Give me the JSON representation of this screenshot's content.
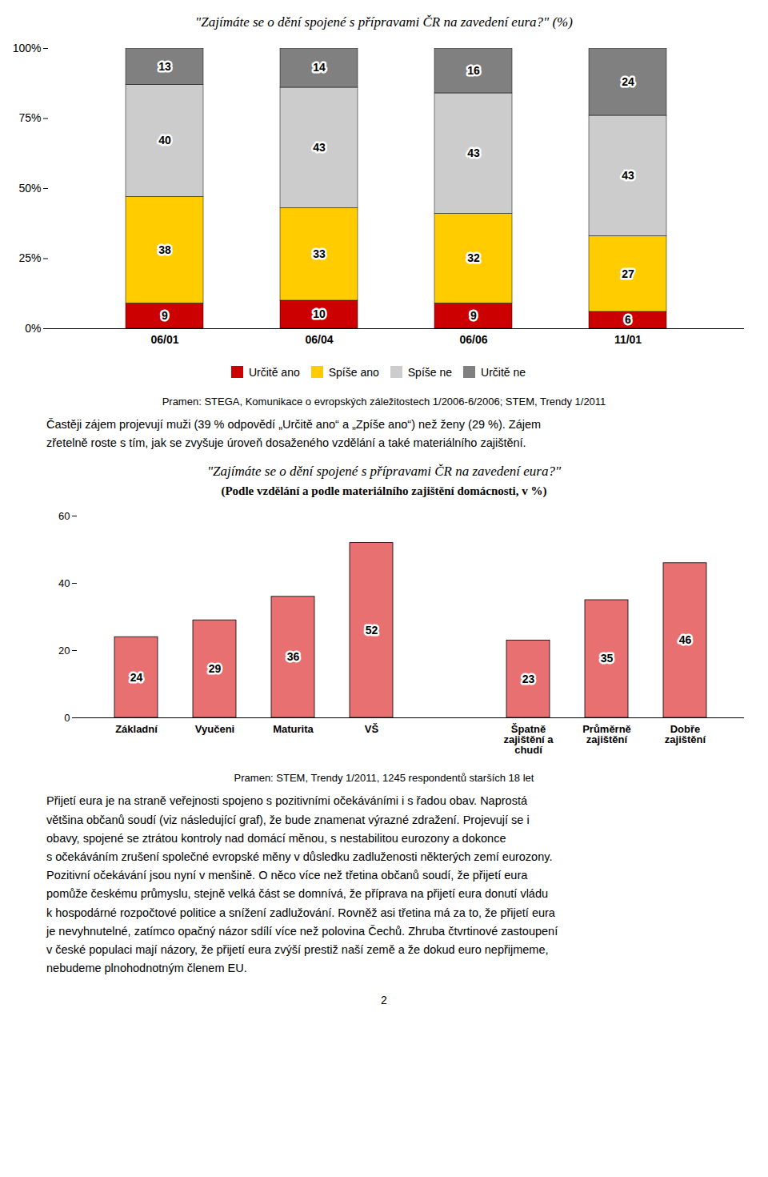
{
  "chart_data": [
    {
      "type": "bar",
      "title": "\"Zajímáte se o dění spojené s přípravami ČR na zavedení eura?\"  (%)",
      "categories": [
        "06/01",
        "06/04",
        "06/06",
        "11/01"
      ],
      "series": [
        {
          "name": "Určitě ano",
          "color": "#cc0000",
          "values": [
            9,
            10,
            9,
            6
          ]
        },
        {
          "name": "Spíše ano",
          "color": "#ffcc00",
          "values": [
            38,
            33,
            32,
            27
          ]
        },
        {
          "name": "Spíše ne",
          "color": "#cccccc",
          "values": [
            40,
            43,
            43,
            43
          ]
        },
        {
          "name": "Určitě ne",
          "color": "#808080",
          "values": [
            13,
            14,
            16,
            24
          ]
        }
      ],
      "stacked": true,
      "data_labels": true,
      "legend": "bottom",
      "grid": false,
      "ylim": [
        0,
        100
      ],
      "yticks": [
        {
          "value": 0,
          "label": "0%"
        },
        {
          "value": 25,
          "label": "25%"
        },
        {
          "value": 50,
          "label": "50%"
        },
        {
          "value": 75,
          "label": "75%"
        },
        {
          "value": 100,
          "label": "100%"
        }
      ],
      "caption": "Pramen: STEGA, Komunikace o evropských záležitostech 1/2006-6/2006; STEM, Trendy 1/2011",
      "annotations": [
        "Častěji zájem projevují muži (39 % odpovědí „Určitě ano“ a „Zpíše ano“) než ženy (29 %). Zájem",
        "zřetelně  roste s tím, jak se zvyšuje úroveň dosaženého vzdělání a také materiálního zajištění."
      ]
    },
    {
      "type": "bar",
      "title": "\"Zajímáte se o dění spojené s přípravami ČR na zavedení eura?\"",
      "subtitle": "(Podle vzdělání a podle materiálního zajištění domácnosti, v %)",
      "categories": [
        "Základní",
        "Vyučeni",
        "Maturita",
        "VŠ",
        null,
        "Špatně\nzajištění a\nchudí",
        "Průměrně\nzajištění",
        "Dobře\nzajištění"
      ],
      "values": [
        24,
        29,
        36,
        52,
        null,
        23,
        35,
        46
      ],
      "color": "#e87070",
      "data_labels": true,
      "grid": false,
      "ylim": [
        0,
        60
      ],
      "yticks": [
        0,
        20,
        40,
        60
      ],
      "caption": "Pramen: STEM, Trendy 1/2011, 1245 respondentů starších 18 let",
      "annotations": [
        "Přijetí eura je na straně veřejnosti spojeno s pozitivními očekáváními i s řadou obav. Naprostá",
        "většina občanů soudí (viz následující graf), že bude znamenat výrazné zdražení. Projevují se i",
        "obavy, spojené se ztrátou kontroly nad domácí měnou, s nestabilitou eurozony a dokonce",
        "s očekáváním zrušení společné evropské měny v důsledku zadluženosti některých zemí eurozony.",
        "Pozitivní očekávání jsou nyní v menšině. O něco více než třetina občanů soudí, že přijetí eura",
        "pomůže českému průmyslu, stejně velká část se domnívá, že příprava na přijetí eura donutí vládu",
        "k hospodárné rozpočtové politice a snížení zadlužování.  Rovněž asi třetina má za to, že přijetí eura",
        "je nevyhnutelné, zatímco opačný názor sdílí více než polovina Čechů. Zhruba čtvrtinové zastoupení",
        "v české populaci mají názory, že přijetí eura zvýší prestiž naší země a že dokud euro nepřijmeme,",
        "nebudeme plnohodnotným členem EU."
      ]
    }
  ],
  "page_number": "2"
}
